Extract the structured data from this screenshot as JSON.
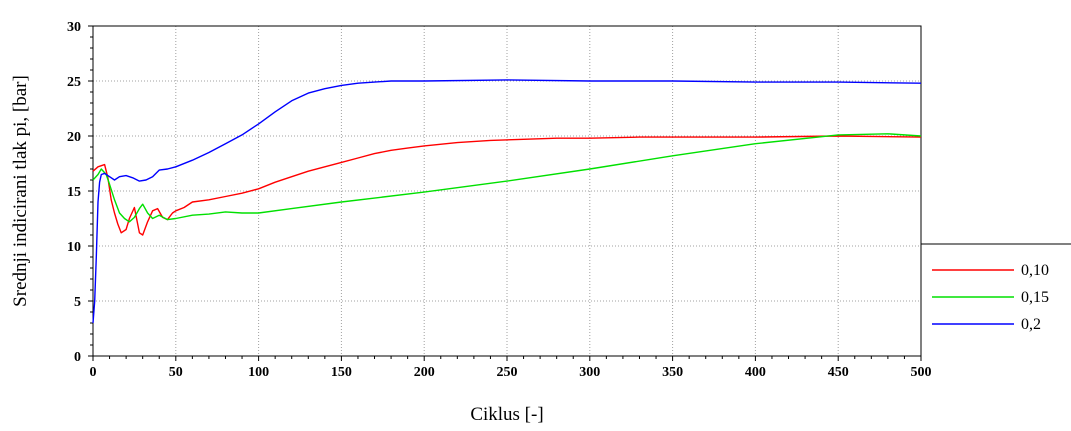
{
  "chart_data": {
    "type": "line",
    "title": "",
    "xlabel": "Ciklus [-]",
    "ylabel": "Srednji indicirani tlak pi, [bar]",
    "xlim": [
      0,
      500
    ],
    "ylim": [
      0,
      30
    ],
    "xticks": [
      0,
      50,
      100,
      150,
      200,
      250,
      300,
      350,
      400,
      450,
      500
    ],
    "yticks": [
      0,
      5,
      10,
      15,
      20,
      25,
      30
    ],
    "grid": true,
    "legend_position": "right",
    "series": [
      {
        "name": "0,10",
        "color": "#ff0000",
        "x": [
          0,
          3,
          5,
          7,
          9,
          11,
          13,
          15,
          17,
          20,
          22,
          25,
          28,
          30,
          33,
          36,
          39,
          42,
          45,
          48,
          50,
          55,
          60,
          70,
          80,
          90,
          100,
          110,
          120,
          130,
          140,
          150,
          160,
          170,
          180,
          190,
          200,
          220,
          240,
          260,
          280,
          300,
          330,
          360,
          400,
          450,
          500
        ],
        "y": [
          16.8,
          17.2,
          17.3,
          17.4,
          16.2,
          14.2,
          13.0,
          12.0,
          11.2,
          11.5,
          12.5,
          13.5,
          11.2,
          11.0,
          12.2,
          13.2,
          13.4,
          12.6,
          12.4,
          13.0,
          13.2,
          13.5,
          14.0,
          14.2,
          14.5,
          14.8,
          15.2,
          15.8,
          16.3,
          16.8,
          17.2,
          17.6,
          18.0,
          18.4,
          18.7,
          18.9,
          19.1,
          19.4,
          19.6,
          19.7,
          19.8,
          19.8,
          19.9,
          19.9,
          19.9,
          20.0,
          19.9
        ]
      },
      {
        "name": "0,15",
        "color": "#00e000",
        "x": [
          0,
          3,
          5,
          8,
          10,
          13,
          16,
          19,
          22,
          25,
          28,
          30,
          33,
          36,
          40,
          45,
          50,
          60,
          70,
          80,
          90,
          100,
          120,
          150,
          200,
          250,
          300,
          350,
          400,
          450,
          480,
          500
        ],
        "y": [
          16.0,
          16.5,
          17.0,
          16.5,
          15.6,
          14.2,
          13.0,
          12.5,
          12.2,
          12.6,
          13.4,
          13.8,
          13.0,
          12.5,
          12.8,
          12.4,
          12.5,
          12.8,
          12.9,
          13.1,
          13.0,
          13.0,
          13.4,
          14.0,
          14.9,
          15.9,
          17.0,
          18.2,
          19.3,
          20.1,
          20.2,
          20.0
        ]
      },
      {
        "name": "0,2",
        "color": "#0000ff",
        "x": [
          0,
          1,
          2,
          3,
          4,
          5,
          7,
          10,
          13,
          16,
          20,
          24,
          28,
          32,
          36,
          40,
          45,
          50,
          60,
          70,
          80,
          90,
          100,
          110,
          120,
          130,
          140,
          150,
          160,
          170,
          180,
          200,
          250,
          300,
          350,
          400,
          450,
          500
        ],
        "y": [
          3.0,
          5.0,
          9.0,
          14.0,
          15.8,
          16.5,
          16.6,
          16.3,
          16.0,
          16.3,
          16.4,
          16.2,
          15.9,
          16.0,
          16.3,
          16.9,
          17.0,
          17.2,
          17.8,
          18.5,
          19.3,
          20.1,
          21.1,
          22.2,
          23.2,
          23.9,
          24.3,
          24.6,
          24.8,
          24.9,
          25.0,
          25.0,
          25.1,
          25.0,
          25.0,
          24.9,
          24.9,
          24.8
        ]
      }
    ]
  }
}
